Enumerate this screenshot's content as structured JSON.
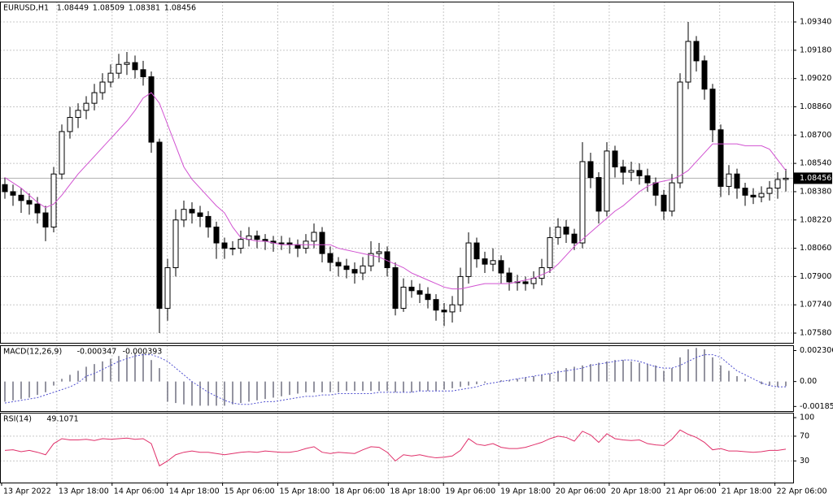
{
  "chart_data": [
    {
      "type": "candlestick",
      "title": "EURUSD,H1",
      "time_labels": [
        "13 Apr 2022",
        "13 Apr 18:00",
        "14 Apr 06:00",
        "14 Apr 18:00",
        "15 Apr 06:00",
        "15 Apr 18:00",
        "18 Apr 06:00",
        "18 Apr 18:00",
        "19 Apr 06:00",
        "19 Apr 18:00",
        "20 Apr 06:00",
        "20 Apr 18:00",
        "21 Apr 06:00",
        "21 Apr 18:00",
        "22 Apr 06:00"
      ],
      "up_color": "#ffffff",
      "down_color": "#000000",
      "open": [
        1.0842,
        1.0838,
        1.0836,
        1.0833,
        1.0831,
        1.0826,
        1.0818,
        1.0848,
        1.0872,
        1.088,
        1.0884,
        1.0888,
        1.0894,
        1.09,
        1.0905,
        1.091,
        1.0911,
        1.0907,
        1.0903,
        1.0866,
        1.0772,
        1.0795,
        1.0822,
        1.0828,
        1.0826,
        1.0824,
        1.0818,
        1.0809,
        1.0806,
        1.0806,
        1.0811,
        1.0813,
        1.0811,
        1.081,
        1.0809,
        1.0809,
        1.0808,
        1.0806,
        1.081,
        1.0815,
        1.0803,
        1.0798,
        1.0796,
        1.0794,
        1.0792,
        1.0796,
        1.0803,
        1.0804,
        1.0795,
        1.0772,
        1.0784,
        1.0782,
        1.078,
        1.0777,
        1.0771,
        1.077,
        1.0774,
        1.079,
        1.0809,
        1.08,
        1.0797,
        1.0799,
        1.0792,
        1.0787,
        1.0787,
        1.0786,
        1.0789,
        1.0795,
        1.0812,
        1.0818,
        1.0814,
        1.0809,
        1.0855,
        1.0846,
        1.0827,
        1.0861,
        1.0852,
        1.0849,
        1.085,
        1.0847,
        1.0843,
        1.0836,
        1.0827,
        1.0843,
        1.09,
        1.0923,
        1.0912,
        1.0896,
        1.0873,
        1.0841,
        1.0848,
        1.084,
        1.0836,
        1.0835,
        1.0837,
        1.084,
        1.08449
      ],
      "high": [
        1.0846,
        1.0842,
        1.084,
        1.0837,
        1.0835,
        1.083,
        1.0852,
        1.0876,
        1.0886,
        1.0888,
        1.0892,
        1.0899,
        1.0905,
        1.091,
        1.0916,
        1.0917,
        1.0915,
        1.0912,
        1.0906,
        1.0868,
        1.08,
        1.0828,
        1.0833,
        1.0832,
        1.083,
        1.0827,
        1.0821,
        1.0812,
        1.081,
        1.0816,
        1.0818,
        1.0816,
        1.0814,
        1.0813,
        1.0813,
        1.0812,
        1.0811,
        1.0814,
        1.082,
        1.0818,
        1.0807,
        1.0801,
        1.08,
        1.0798,
        1.0801,
        1.081,
        1.0809,
        1.0807,
        1.0798,
        1.0789,
        1.0788,
        1.0786,
        1.0784,
        1.078,
        1.0775,
        1.0779,
        1.0795,
        1.0815,
        1.0812,
        1.0804,
        1.0806,
        1.0802,
        1.0795,
        1.0791,
        1.079,
        1.0793,
        1.08,
        1.0818,
        1.0823,
        1.0822,
        1.0817,
        1.0866,
        1.086,
        1.0849,
        1.0866,
        1.0864,
        1.0856,
        1.0855,
        1.0854,
        1.0851,
        1.0846,
        1.0839,
        1.0848,
        1.0905,
        1.0934,
        1.0926,
        1.0915,
        1.0899,
        1.0876,
        1.0853,
        1.0851,
        1.0843,
        1.084,
        1.0841,
        1.0844,
        1.0849,
        1.08509
      ],
      "low": [
        1.0834,
        1.083,
        1.0826,
        1.0825,
        1.082,
        1.081,
        1.0815,
        1.0845,
        1.0868,
        1.0874,
        1.0879,
        1.0884,
        1.089,
        1.0897,
        1.0902,
        1.0904,
        1.0902,
        1.0898,
        1.086,
        1.0758,
        1.0765,
        1.079,
        1.0818,
        1.082,
        1.0818,
        1.0812,
        1.08,
        1.08,
        1.0802,
        1.0803,
        1.0807,
        1.0806,
        1.0805,
        1.0804,
        1.0805,
        1.0803,
        1.0801,
        1.0803,
        1.0806,
        1.0798,
        1.0793,
        1.079,
        1.0789,
        1.0786,
        1.0788,
        1.0793,
        1.0798,
        1.079,
        1.0768,
        1.077,
        1.0778,
        1.0775,
        1.0772,
        1.0765,
        1.0762,
        1.0764,
        1.077,
        1.0786,
        1.0795,
        1.0792,
        1.0793,
        1.0786,
        1.0782,
        1.0782,
        1.0782,
        1.0783,
        1.0785,
        1.0792,
        1.0808,
        1.0809,
        1.0805,
        1.0806,
        1.084,
        1.082,
        1.0824,
        1.0846,
        1.0842,
        1.0844,
        1.0842,
        1.0838,
        1.083,
        1.0822,
        1.0824,
        1.084,
        1.0896,
        1.0906,
        1.089,
        1.0866,
        1.0835,
        1.0836,
        1.0834,
        1.083,
        1.0831,
        1.0832,
        1.0833,
        1.0834,
        1.08381
      ],
      "close": [
        1.0838,
        1.0836,
        1.0833,
        1.0831,
        1.0826,
        1.0818,
        1.0848,
        1.0872,
        1.088,
        1.0884,
        1.0888,
        1.0894,
        1.09,
        1.0905,
        1.091,
        1.0911,
        1.0907,
        1.0903,
        1.0866,
        1.0772,
        1.0795,
        1.0822,
        1.0828,
        1.0826,
        1.0824,
        1.0818,
        1.0809,
        1.0806,
        1.0806,
        1.0811,
        1.0813,
        1.0811,
        1.081,
        1.0809,
        1.0809,
        1.0808,
        1.0806,
        1.081,
        1.0815,
        1.0803,
        1.0798,
        1.0796,
        1.0794,
        1.0792,
        1.0796,
        1.0803,
        1.0804,
        1.0795,
        1.0772,
        1.0784,
        1.0782,
        1.078,
        1.0777,
        1.0771,
        1.077,
        1.0774,
        1.079,
        1.0809,
        1.08,
        1.0797,
        1.0799,
        1.0792,
        1.0787,
        1.0787,
        1.0786,
        1.0789,
        1.0795,
        1.0812,
        1.0818,
        1.0814,
        1.0809,
        1.0855,
        1.0846,
        1.0827,
        1.0861,
        1.0852,
        1.0849,
        1.085,
        1.0847,
        1.0843,
        1.0836,
        1.0827,
        1.0843,
        1.09,
        1.0923,
        1.0912,
        1.0896,
        1.0873,
        1.0841,
        1.0848,
        1.084,
        1.0836,
        1.0835,
        1.0837,
        1.084,
        1.08449,
        1.08456
      ],
      "ma": {
        "color": "#d152d1",
        "values": [
          1.0846,
          1.0843,
          1.084,
          1.0836,
          1.0832,
          1.0829,
          1.0831,
          1.0836,
          1.0842,
          1.0848,
          1.0853,
          1.0858,
          1.0863,
          1.0868,
          1.0873,
          1.0878,
          1.0884,
          1.0891,
          1.0894,
          1.0888,
          1.0876,
          1.0864,
          1.0852,
          1.0845,
          1.084,
          1.0835,
          1.083,
          1.0826,
          1.0818,
          1.0812,
          1.0811,
          1.081,
          1.081,
          1.0809,
          1.0808,
          1.0808,
          1.0808,
          1.0808,
          1.0808,
          1.0808,
          1.0808,
          1.0806,
          1.0805,
          1.0804,
          1.0803,
          1.0802,
          1.0801,
          1.0799,
          1.0797,
          1.0795,
          1.0792,
          1.079,
          1.0788,
          1.0786,
          1.0784,
          1.0783,
          1.0783,
          1.0784,
          1.0785,
          1.0786,
          1.0786,
          1.0786,
          1.0786,
          1.0787,
          1.0788,
          1.0789,
          1.0791,
          1.0793,
          1.0797,
          1.0802,
          1.0807,
          1.0811,
          1.0815,
          1.0819,
          1.0823,
          1.0827,
          1.083,
          1.0834,
          1.0838,
          1.0841,
          1.0843,
          1.0844,
          1.0845,
          1.0847,
          1.085,
          1.0855,
          1.086,
          1.0865,
          1.0865,
          1.0865,
          1.0865,
          1.0864,
          1.0864,
          1.0864,
          1.0862,
          1.0856,
          1.085
        ]
      },
      "ylim": [
        1.07525,
        1.09455
      ],
      "yticks": [
        {
          "value": 1.0934,
          "label": "1.09340"
        },
        {
          "value": 1.0918,
          "label": "1.09180"
        },
        {
          "value": 1.0902,
          "label": "1.09020"
        },
        {
          "value": 1.0886,
          "label": "1.08860"
        },
        {
          "value": 1.087,
          "label": "1.08700"
        },
        {
          "value": 1.0854,
          "label": "1.08540"
        },
        {
          "value": 1.0838,
          "label": "1.08380"
        },
        {
          "value": 1.0822,
          "label": "1.08220"
        },
        {
          "value": 1.0806,
          "label": "1.08060"
        },
        {
          "value": 1.079,
          "label": "1.07900"
        },
        {
          "value": 1.0774,
          "label": "1.07740"
        },
        {
          "value": 1.0758,
          "label": "1.07580"
        }
      ],
      "grid": true
    },
    {
      "type": "macd",
      "title": "MACD(12,26,9)",
      "series": [
        {
          "name": "MACD",
          "color": "#707080",
          "values": [
            -0.0015,
            -0.0014,
            -0.0013,
            -0.0012,
            -0.001,
            -0.0008,
            -0.0003,
            0.0002,
            0.0005,
            0.0008,
            0.0011,
            0.0013,
            0.0015,
            0.0017,
            0.0019,
            0.002,
            0.0021,
            0.0021,
            0.0016,
            0.001,
            -0.0015,
            -0.0016,
            -0.0017,
            -0.0018,
            -0.0018,
            -0.0018,
            -0.0018,
            -0.0018,
            -0.0017,
            -0.0016,
            -0.0015,
            -0.0014,
            -0.0013,
            -0.0012,
            -0.0011,
            -0.001,
            -0.0009,
            -0.0008,
            -0.0008,
            -0.0008,
            -0.0008,
            -0.0008,
            -0.0007,
            -0.0007,
            -0.0007,
            -0.0007,
            -0.0007,
            -0.0007,
            -0.0008,
            -0.0008,
            -0.0008,
            -0.0007,
            -0.0007,
            -0.0007,
            -0.0006,
            -0.0005,
            -0.0004,
            -0.0003,
            -0.0002,
            -0.0001,
            0.0,
            0.0001,
            0.0001,
            0.0002,
            0.0003,
            0.0004,
            0.0005,
            0.0006,
            0.0008,
            0.001,
            0.0011,
            0.0012,
            0.0013,
            0.0014,
            0.0015,
            0.0016,
            0.0016,
            0.0015,
            0.0014,
            0.0013,
            0.0012,
            0.0008,
            0.001,
            0.0018,
            0.0024,
            0.0025,
            0.0024,
            0.0018,
            0.0012,
            0.0008,
            0.0004,
            0.0002,
            0.0,
            -0.0002,
            -0.0003,
            -0.0004,
            -0.000347
          ]
        },
        {
          "name": "Signal",
          "color": "#5050d0",
          "values": [
            -0.0016,
            -0.0015,
            -0.0014,
            -0.0013,
            -0.0012,
            -0.001,
            -0.0008,
            -0.0006,
            -0.0004,
            -0.0001,
            0.0004,
            0.0006,
            0.0009,
            0.0012,
            0.0015,
            0.0017,
            0.0019,
            0.002,
            0.002,
            0.0018,
            0.0015,
            0.001,
            0.0005,
            0.0,
            -0.0004,
            -0.0008,
            -0.0011,
            -0.0014,
            -0.0016,
            -0.0017,
            -0.0017,
            -0.0016,
            -0.0015,
            -0.0015,
            -0.0014,
            -0.0013,
            -0.0012,
            -0.0011,
            -0.0011,
            -0.001,
            -0.001,
            -0.0009,
            -0.0009,
            -0.0009,
            -0.0009,
            -0.0009,
            -0.0008,
            -0.0008,
            -0.0008,
            -0.0008,
            -0.0008,
            -0.0007,
            -0.0007,
            -0.0007,
            -0.0007,
            -0.0007,
            -0.0006,
            -0.0005,
            -0.0004,
            -0.0002,
            -0.0001,
            0.0,
            0.0001,
            0.0002,
            0.0003,
            0.0004,
            0.0005,
            0.0006,
            0.0007,
            0.0008,
            0.0009,
            0.001,
            0.0012,
            0.0013,
            0.0014,
            0.0015,
            0.0016,
            0.0016,
            0.0015,
            0.0013,
            0.0011,
            0.001,
            0.001,
            0.0012,
            0.0015,
            0.0018,
            0.002,
            0.002,
            0.0018,
            0.0013,
            0.0008,
            0.0005,
            0.0002,
            -0.0001,
            -0.0003,
            -0.0004,
            -0.000393
          ]
        }
      ],
      "ylim": [
        -0.0022,
        0.0027
      ],
      "yticks": [
        0.002306,
        {
          "value": 0,
          "label": "0.00"
        },
        -0.001858
      ]
    },
    {
      "type": "rsi",
      "title": "RSI(14)",
      "series": [
        {
          "name": "RSI",
          "color": "#e0306a",
          "values": [
            47,
            48,
            45,
            47,
            44,
            40,
            58,
            66,
            64,
            64,
            65,
            63,
            66,
            65,
            66,
            67,
            65,
            66,
            58,
            22,
            30,
            40,
            44,
            46,
            44,
            44,
            42,
            40,
            42,
            44,
            45,
            44,
            46,
            45,
            44,
            44,
            46,
            50,
            53,
            44,
            42,
            44,
            43,
            42,
            48,
            53,
            52,
            44,
            30,
            40,
            38,
            40,
            37,
            35,
            36,
            38,
            47,
            66,
            57,
            55,
            58,
            52,
            50,
            50,
            52,
            56,
            60,
            66,
            70,
            68,
            62,
            78,
            72,
            60,
            74,
            66,
            64,
            63,
            64,
            58,
            56,
            55,
            65,
            80,
            73,
            68,
            60,
            48,
            50,
            46,
            46,
            45,
            44,
            45,
            47,
            47,
            49.1071
          ]
        }
      ],
      "ylim": [
        -5,
        108
      ],
      "yticks": [
        100,
        70,
        30
      ]
    }
  ]
}
